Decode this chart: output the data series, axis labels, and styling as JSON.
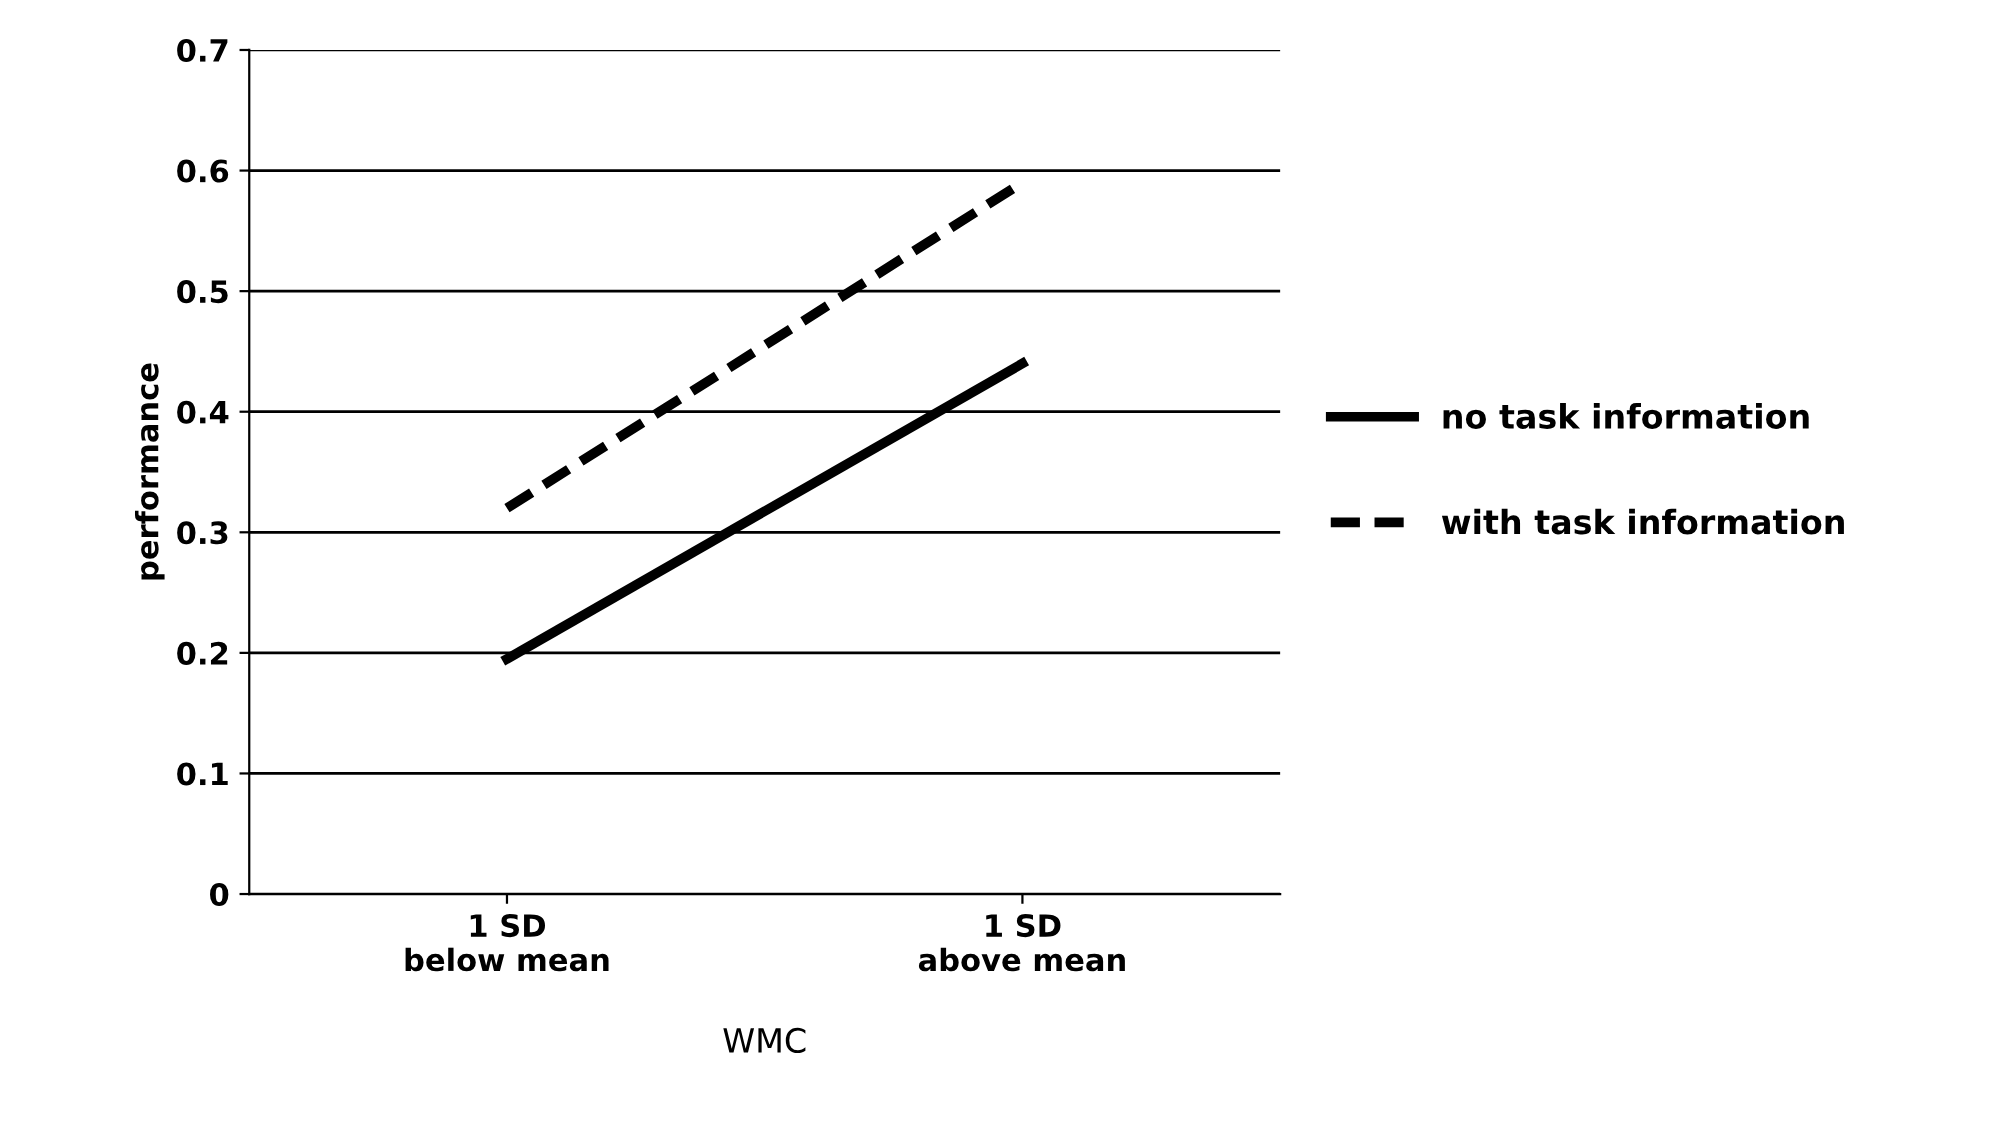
{
  "chart_data": {
    "type": "line",
    "xlabel": "WMC",
    "ylabel": "performance",
    "categories": [
      "1 SD\nbelow mean",
      "1 SD\nabove mean"
    ],
    "series": [
      {
        "name": "no task information",
        "color": "#000000",
        "values": [
          0.195,
          0.44
        ],
        "line_style": "solid"
      },
      {
        "name": "with task information",
        "color": "#000000",
        "values": [
          0.32,
          0.59
        ],
        "line_style": "dashed"
      }
    ],
    "ylim": [
      0,
      0.7
    ],
    "yticks": [
      0,
      0.1,
      0.2,
      0.3,
      0.4,
      0.5,
      0.6,
      0.7
    ],
    "grid": "y",
    "legend": "right",
    "marker": "none"
  }
}
